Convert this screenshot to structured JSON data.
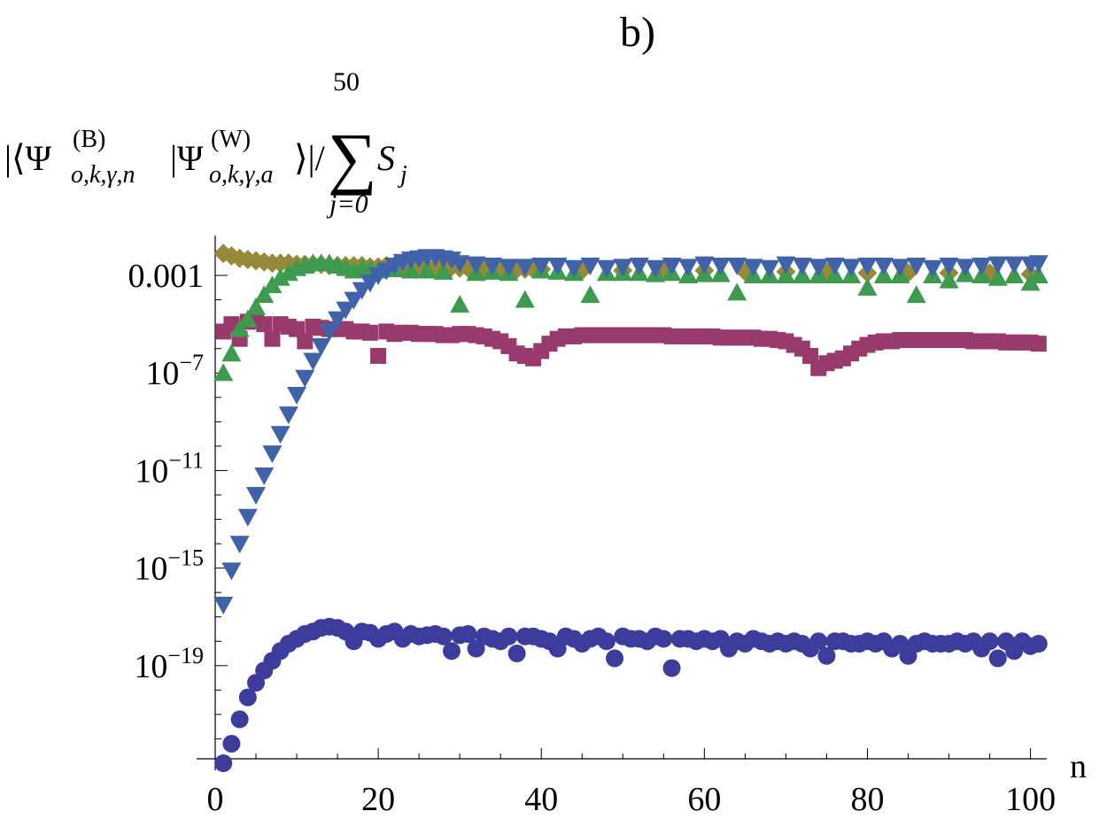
{
  "chart_data": {
    "type": "scatter",
    "title": "b)",
    "xlabel": "n",
    "ylabel": {
      "main": "|⟨Ψ",
      "sup1": "(B)",
      "sub1": "o,k,γ,n",
      "bar": "|Ψ",
      "sup2": "(W)",
      "sub2": "o,k,γ,a",
      "close": "⟩|/",
      "sum": "∑",
      "sum_upper": "50",
      "sum_lower": "j=0",
      "term": "S",
      "term_sub": "j"
    },
    "xlim": [
      0,
      102
    ],
    "ylim_log10": [
      -23,
      -1.8
    ],
    "x_ticks": [
      0,
      20,
      40,
      60,
      80,
      100
    ],
    "y_ticks": [
      {
        "value_log10": -3,
        "mantissa": "0.001",
        "base": "",
        "exponent": ""
      },
      {
        "value_log10": -7,
        "mantissa": "",
        "base": "10",
        "exponent": "−7"
      },
      {
        "value_log10": -11,
        "mantissa": "",
        "base": "10",
        "exponent": "−11"
      },
      {
        "value_log10": -15,
        "mantissa": "",
        "base": "10",
        "exponent": "−15"
      },
      {
        "value_log10": -19,
        "mantissa": "",
        "base": "10",
        "exponent": "−19"
      }
    ],
    "series": [
      {
        "name": "diamonds",
        "marker": "diamond",
        "color": "#968a3a",
        "x": [
          1,
          2,
          3,
          4,
          5,
          6,
          7,
          8,
          9,
          10,
          11,
          12,
          13,
          14,
          15,
          16,
          17,
          18,
          19,
          20,
          21,
          22,
          23,
          24,
          25,
          26,
          27,
          28,
          29,
          30,
          31,
          32,
          33,
          34,
          35,
          36,
          37,
          38,
          39,
          40,
          45,
          50,
          55,
          60,
          65,
          70,
          75,
          80,
          85,
          90,
          95,
          100
        ],
        "log10_y": [
          -2.1,
          -2.2,
          -2.3,
          -2.35,
          -2.4,
          -2.45,
          -2.5,
          -2.5,
          -2.5,
          -2.55,
          -2.55,
          -2.55,
          -2.55,
          -2.6,
          -2.6,
          -2.6,
          -2.6,
          -2.6,
          -2.65,
          -2.65,
          -2.6,
          -2.6,
          -2.65,
          -2.65,
          -2.6,
          -2.65,
          -2.65,
          -2.65,
          -2.65,
          -2.7,
          -2.7,
          -2.7,
          -2.7,
          -2.7,
          -2.7,
          -2.75,
          -2.75,
          -2.75,
          -2.75,
          -2.75,
          -2.8,
          -2.8,
          -2.8,
          -2.8,
          -2.85,
          -2.85,
          -2.85,
          -2.9,
          -2.9,
          -2.9,
          -2.9,
          -2.95
        ]
      },
      {
        "name": "squares",
        "marker": "square",
        "color": "#983a6c",
        "x": [
          1,
          2,
          3,
          4,
          5,
          6,
          7,
          8,
          9,
          10,
          11,
          12,
          13,
          14,
          15,
          16,
          17,
          18,
          19,
          20,
          21,
          22,
          23,
          24,
          25,
          26,
          27,
          28,
          29,
          30,
          31,
          32,
          33,
          34,
          35,
          36,
          37,
          38,
          39,
          40,
          41,
          42,
          43,
          44,
          45,
          46,
          47,
          48,
          49,
          50,
          51,
          52,
          53,
          54,
          55,
          56,
          57,
          58,
          59,
          60,
          61,
          62,
          63,
          64,
          65,
          66,
          67,
          68,
          69,
          70,
          71,
          72,
          73,
          74,
          75,
          76,
          77,
          78,
          79,
          80,
          81,
          82,
          83,
          84,
          85,
          86,
          87,
          88,
          89,
          90,
          91,
          92,
          93,
          94,
          95,
          96,
          97,
          98,
          99,
          100,
          101
        ],
        "log10_y": [
          -5.3,
          -5.0,
          -5.6,
          -4.9,
          -4.85,
          -5.0,
          -5.6,
          -5.0,
          -5.1,
          -5.2,
          -5.7,
          -5.1,
          -5.15,
          -5.2,
          -5.2,
          -5.2,
          -5.3,
          -5.3,
          -5.35,
          -6.3,
          -5.3,
          -5.4,
          -5.35,
          -5.35,
          -5.4,
          -5.4,
          -5.4,
          -5.45,
          -5.45,
          -5.4,
          -5.4,
          -5.45,
          -5.5,
          -5.6,
          -5.7,
          -5.9,
          -6.2,
          -6.3,
          -6.4,
          -6.1,
          -5.8,
          -5.6,
          -5.5,
          -5.5,
          -5.45,
          -5.45,
          -5.45,
          -5.45,
          -5.45,
          -5.45,
          -5.45,
          -5.45,
          -5.45,
          -5.45,
          -5.45,
          -5.5,
          -5.5,
          -5.5,
          -5.5,
          -5.5,
          -5.5,
          -5.55,
          -5.55,
          -5.55,
          -5.55,
          -5.55,
          -5.6,
          -5.6,
          -5.65,
          -5.7,
          -5.85,
          -6.0,
          -6.3,
          -6.8,
          -6.6,
          -6.5,
          -6.4,
          -6.2,
          -6.0,
          -5.85,
          -5.75,
          -5.7,
          -5.7,
          -5.65,
          -5.65,
          -5.65,
          -5.65,
          -5.65,
          -5.65,
          -5.65,
          -5.65,
          -5.65,
          -5.7,
          -5.7,
          -5.7,
          -5.7,
          -5.75,
          -5.75,
          -5.75,
          -5.75,
          -5.8
        ]
      },
      {
        "name": "triangles-up",
        "marker": "triangle-up",
        "color": "#3d9a4f",
        "x": [
          1,
          2,
          3,
          4,
          5,
          6,
          7,
          8,
          9,
          10,
          11,
          12,
          13,
          14,
          15,
          16,
          17,
          18,
          19,
          20,
          22,
          24,
          26,
          28,
          30,
          32,
          34,
          36,
          38,
          40,
          42,
          44,
          46,
          48,
          50,
          52,
          54,
          56,
          58,
          60,
          62,
          64,
          66,
          68,
          70,
          72,
          74,
          76,
          78,
          80,
          82,
          84,
          86,
          88,
          90,
          92,
          94,
          96,
          98,
          100,
          101
        ],
        "log10_y": [
          -7.0,
          -6.2,
          -5.2,
          -4.8,
          -4.3,
          -3.8,
          -3.4,
          -3.1,
          -2.9,
          -2.7,
          -2.6,
          -2.5,
          -2.5,
          -2.5,
          -2.6,
          -2.7,
          -2.8,
          -2.7,
          -2.75,
          -2.8,
          -2.75,
          -2.8,
          -2.8,
          -2.85,
          -4.2,
          -2.9,
          -2.85,
          -2.9,
          -4.0,
          -2.8,
          -2.85,
          -2.9,
          -3.8,
          -2.9,
          -2.9,
          -2.9,
          -2.95,
          -2.9,
          -3.0,
          -2.95,
          -2.95,
          -3.7,
          -3.0,
          -3.0,
          -3.0,
          -3.0,
          -3.0,
          -3.0,
          -3.0,
          -3.5,
          -3.0,
          -3.0,
          -3.8,
          -3.0,
          -3.2,
          -2.95,
          -3.0,
          -3.1,
          -3.0,
          -3.3,
          -3.0
        ]
      },
      {
        "name": "triangles-down",
        "marker": "triangle-down",
        "color": "#3f62a8",
        "x": [
          1,
          2,
          3,
          4,
          5,
          6,
          7,
          8,
          9,
          10,
          11,
          12,
          13,
          14,
          15,
          16,
          17,
          18,
          19,
          20,
          21,
          22,
          23,
          24,
          25,
          26,
          27,
          28,
          29,
          30,
          32,
          34,
          36,
          38,
          40,
          42,
          44,
          46,
          48,
          50,
          52,
          54,
          56,
          58,
          60,
          62,
          64,
          66,
          68,
          70,
          72,
          74,
          76,
          78,
          80,
          82,
          84,
          86,
          88,
          90,
          92,
          94,
          96,
          98,
          100,
          101
        ],
        "log10_y": [
          -16.5,
          -15.1,
          -14.0,
          -12.9,
          -12.0,
          -11.2,
          -10.3,
          -9.5,
          -8.7,
          -7.9,
          -7.2,
          -6.5,
          -5.9,
          -5.3,
          -4.8,
          -4.4,
          -4.0,
          -3.6,
          -3.3,
          -3.0,
          -2.8,
          -2.6,
          -2.45,
          -2.35,
          -2.3,
          -2.25,
          -2.25,
          -2.3,
          -2.35,
          -2.5,
          -2.55,
          -2.6,
          -2.65,
          -2.65,
          -2.6,
          -2.6,
          -2.7,
          -2.6,
          -2.7,
          -2.65,
          -2.6,
          -2.7,
          -2.6,
          -2.65,
          -2.55,
          -2.6,
          -2.6,
          -2.65,
          -2.7,
          -2.55,
          -2.6,
          -2.65,
          -2.6,
          -2.65,
          -2.6,
          -2.6,
          -2.65,
          -2.6,
          -2.7,
          -2.6,
          -2.65,
          -2.6,
          -2.55,
          -2.55,
          -2.55,
          -2.5
        ]
      },
      {
        "name": "circles",
        "marker": "circle",
        "color": "#3c3c9c",
        "x": [
          1,
          2,
          3,
          4,
          5,
          6,
          7,
          8,
          9,
          10,
          11,
          12,
          13,
          14,
          15,
          16,
          17,
          18,
          19,
          20,
          21,
          22,
          23,
          24,
          25,
          26,
          27,
          28,
          29,
          30,
          31,
          32,
          33,
          34,
          35,
          36,
          37,
          38,
          39,
          40,
          41,
          42,
          43,
          44,
          45,
          46,
          47,
          48,
          49,
          50,
          51,
          52,
          53,
          54,
          55,
          56,
          57,
          58,
          59,
          60,
          61,
          62,
          63,
          64,
          65,
          66,
          67,
          68,
          69,
          70,
          71,
          72,
          73,
          74,
          75,
          76,
          77,
          78,
          79,
          80,
          81,
          82,
          83,
          84,
          85,
          86,
          87,
          88,
          89,
          90,
          91,
          92,
          93,
          94,
          95,
          96,
          97,
          98,
          99,
          100,
          101
        ],
        "log10_y": [
          -23.0,
          -22.2,
          -21.2,
          -20.3,
          -19.7,
          -19.2,
          -18.8,
          -18.4,
          -18.1,
          -17.9,
          -17.7,
          -17.6,
          -17.45,
          -17.4,
          -17.45,
          -17.6,
          -18.0,
          -17.6,
          -17.65,
          -17.9,
          -17.7,
          -17.6,
          -17.9,
          -17.7,
          -17.8,
          -17.75,
          -17.7,
          -17.8,
          -18.4,
          -17.75,
          -17.7,
          -18.3,
          -17.8,
          -17.9,
          -18.0,
          -17.8,
          -18.5,
          -17.8,
          -17.8,
          -17.9,
          -18.0,
          -18.3,
          -17.8,
          -17.9,
          -18.1,
          -17.9,
          -17.8,
          -18.0,
          -18.7,
          -17.8,
          -17.9,
          -17.9,
          -18.0,
          -17.8,
          -17.9,
          -19.1,
          -17.9,
          -17.9,
          -18.0,
          -17.9,
          -18.0,
          -17.9,
          -18.3,
          -18.0,
          -18.1,
          -17.9,
          -18.0,
          -18.1,
          -18.0,
          -18.1,
          -18.0,
          -18.1,
          -18.3,
          -18.0,
          -18.6,
          -18.0,
          -18.0,
          -18.1,
          -18.1,
          -18.0,
          -18.1,
          -18.0,
          -18.3,
          -18.1,
          -18.6,
          -18.1,
          -18.0,
          -18.1,
          -18.1,
          -18.1,
          -18.0,
          -18.1,
          -18.0,
          -18.3,
          -18.0,
          -18.7,
          -18.0,
          -18.4,
          -18.0,
          -18.2,
          -18.1
        ]
      }
    ]
  }
}
